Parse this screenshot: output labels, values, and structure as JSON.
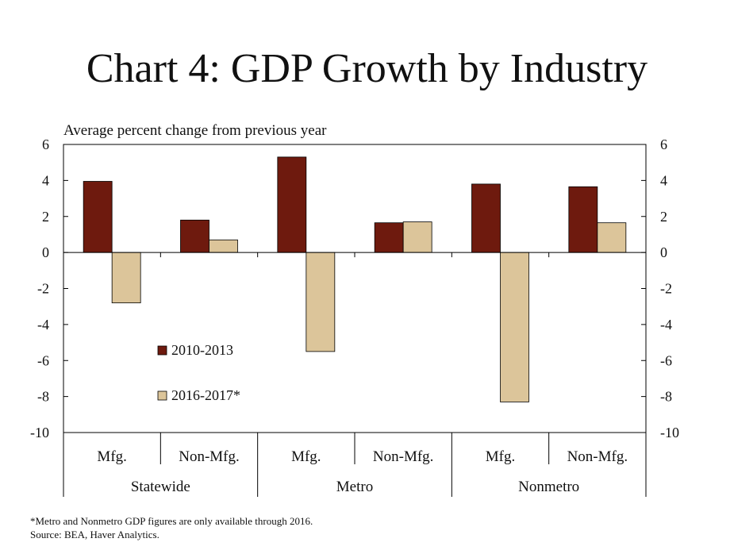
{
  "chart_data": {
    "type": "bar",
    "title": "Chart 4: GDP Growth by Industry",
    "ylabel": "Average percent change from previous year",
    "ylim": [
      -10,
      6
    ],
    "yticks": [
      "6",
      "4",
      "2",
      "0",
      "-2",
      "-4",
      "-6",
      "-8",
      "-10"
    ],
    "ytick_values": [
      6,
      4,
      2,
      0,
      -2,
      -4,
      -6,
      -8,
      -10
    ],
    "categories": [
      "Mfg.",
      "Non-Mfg.",
      "Mfg.",
      "Non-Mfg.",
      "Mfg.",
      "Non-Mfg."
    ],
    "groups": [
      "Statewide",
      "Metro",
      "Nonmetro"
    ],
    "series": [
      {
        "name": "2010-2013",
        "color": "#6e1a0e",
        "values": [
          3.95,
          1.8,
          5.3,
          1.65,
          3.8,
          3.65
        ]
      },
      {
        "name": "2016-2017*",
        "color": "#dcc59a",
        "values": [
          -2.8,
          0.7,
          -5.5,
          1.7,
          -8.3,
          1.65
        ]
      }
    ],
    "legend_placement": "lower-left inside plot",
    "grid": false
  },
  "footnotes": {
    "note": "*Metro and Nonmetro GDP figures are only available through 2016.",
    "source": "Source: BEA, Haver Analytics."
  }
}
